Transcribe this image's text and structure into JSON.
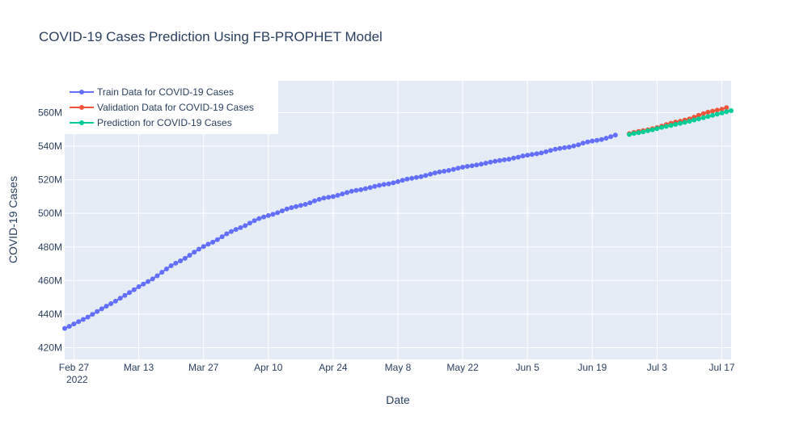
{
  "chart_data": {
    "type": "line",
    "title": "COVID-19 Cases Prediction Using FB-PROPHET Model",
    "xlabel": "Date",
    "ylabel": "COVID-19 Cases",
    "x_range": [
      "2022-02-25",
      "2022-07-19"
    ],
    "ylim": [
      413,
      579
    ],
    "y_ticks": [
      420,
      440,
      460,
      480,
      500,
      520,
      540,
      560
    ],
    "y_tick_labels": [
      "420M",
      "440M",
      "460M",
      "480M",
      "500M",
      "520M",
      "540M",
      "560M"
    ],
    "x_ticks": [
      "2022-02-27",
      "2022-03-13",
      "2022-03-27",
      "2022-04-10",
      "2022-04-24",
      "2022-05-08",
      "2022-05-22",
      "2022-06-05",
      "2022-06-19",
      "2022-07-03",
      "2022-07-17"
    ],
    "x_tick_labels": [
      "Feb 27",
      "Mar 13",
      "Mar 27",
      "Apr 10",
      "Apr 24",
      "May 8",
      "May 22",
      "Jun 5",
      "Jun 19",
      "Jul 3",
      "Jul 17"
    ],
    "x_year_label": "2022",
    "grid": true,
    "legend_position": "top-left",
    "series": [
      {
        "name": "Train Data for COVID-19 Cases",
        "color": "#636efa",
        "x_start": "2022-02-25",
        "x_step_days": 1,
        "values": [
          431.5,
          432.7,
          434.1,
          435.5,
          436.8,
          438.2,
          439.8,
          441.5,
          443.1,
          444.7,
          446.2,
          447.7,
          449.4,
          451.1,
          452.8,
          454.5,
          456.3,
          457.9,
          459.4,
          460.9,
          462.8,
          464.9,
          466.9,
          468.8,
          470.3,
          471.7,
          473.2,
          475.0,
          476.9,
          478.7,
          480.2,
          481.6,
          482.8,
          484.3,
          486.1,
          487.8,
          489.2,
          490.4,
          491.5,
          492.7,
          494.2,
          495.6,
          496.9,
          497.9,
          498.7,
          499.4,
          500.4,
          501.5,
          502.6,
          503.4,
          504.1,
          504.7,
          505.4,
          506.3,
          507.4,
          508.3,
          509.1,
          509.6,
          510.0,
          510.7,
          511.6,
          512.4,
          513.2,
          513.7,
          514.1,
          514.7,
          515.4,
          516.1,
          516.7,
          517.2,
          517.6,
          518.2,
          518.9,
          519.7,
          520.4,
          520.9,
          521.4,
          521.9,
          522.6,
          523.4,
          524.1,
          524.7,
          525.1,
          525.6,
          526.2,
          526.9,
          527.5,
          528.0,
          528.4,
          528.8,
          529.3,
          529.9,
          530.5,
          531.1,
          531.5,
          531.9,
          532.3,
          532.9,
          533.5,
          534.2,
          534.7,
          535.1,
          535.5,
          536.0,
          536.7,
          537.5,
          538.2,
          538.7,
          539.1,
          539.5,
          540.1,
          540.9,
          541.8,
          542.6,
          543.1,
          543.5,
          544.0,
          544.8,
          545.7,
          546.6
        ]
      },
      {
        "name": "Validation Data for COVID-19 Cases",
        "color": "#ef553b",
        "x_start": "2022-06-27",
        "x_step_days": 1,
        "values": [
          547.5,
          548.2,
          548.8,
          549.3,
          549.8,
          550.4,
          551.1,
          552.0,
          552.9,
          553.7,
          554.4,
          554.9,
          555.5,
          556.3,
          557.3,
          558.4,
          559.4,
          560.3,
          560.9,
          561.5,
          562.0,
          563.0
        ]
      },
      {
        "name": "Prediction for COVID-19 Cases",
        "color": "#00cc96",
        "x_start": "2022-06-27",
        "x_step_days": 1,
        "values": [
          547.0,
          547.6,
          548.1,
          548.6,
          549.2,
          549.8,
          550.5,
          551.2,
          551.8,
          552.4,
          553.0,
          553.6,
          554.2,
          554.9,
          555.6,
          556.3,
          557.0,
          557.7,
          558.4,
          559.1,
          559.8,
          560.5,
          561.2
        ]
      }
    ]
  }
}
